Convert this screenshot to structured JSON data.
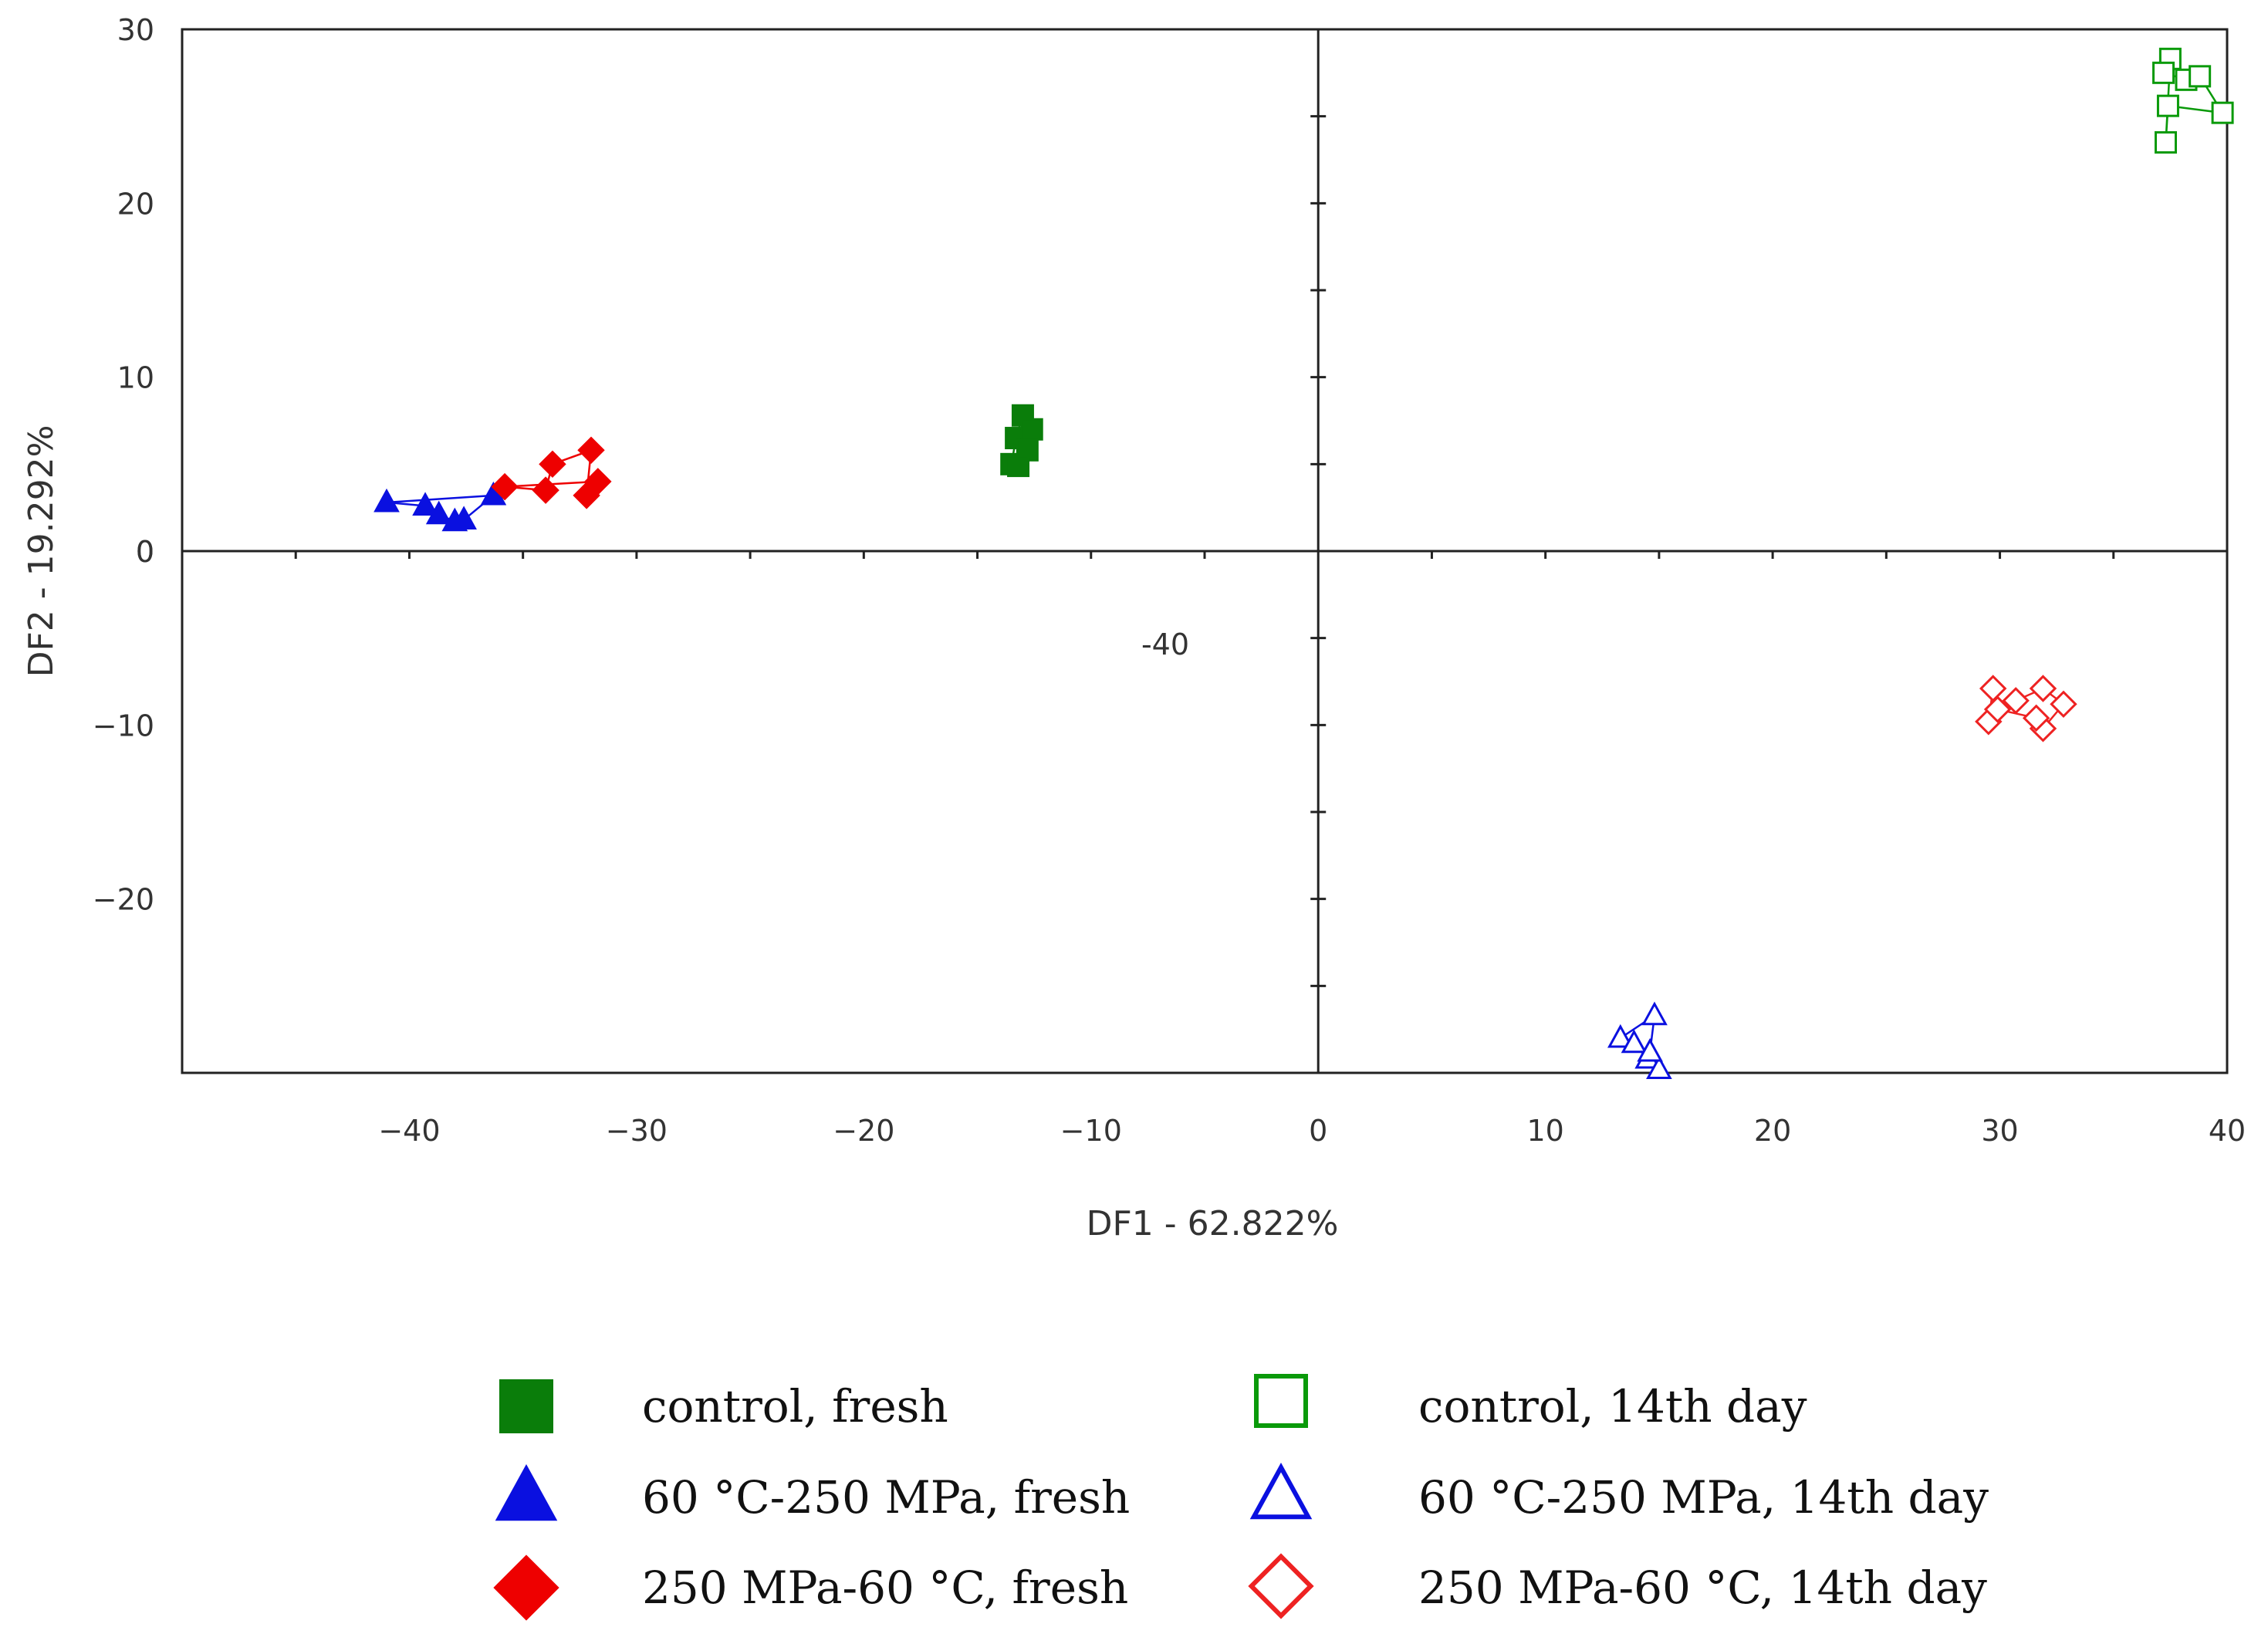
{
  "chart_data": {
    "type": "scatter",
    "title": "",
    "xlabel": "DF1 - 62.822%",
    "ylabel": "DF2 - 19.292%",
    "xlim": [
      -50,
      40
    ],
    "ylim": [
      -30,
      30
    ],
    "x_ticks": [
      -40,
      -30,
      -20,
      -10,
      0,
      10,
      20,
      30,
      40
    ],
    "y_ticks": [
      -20,
      -10,
      0,
      10,
      20,
      30
    ],
    "stray_label": "-40",
    "grid": false,
    "legend_position": "bottom",
    "series": [
      {
        "name": "control, fresh",
        "marker": "square",
        "filled": true,
        "color": "#0a7d0a",
        "points": [
          [
            -13.5,
            5.0
          ],
          [
            -13.3,
            6.5
          ],
          [
            -13.0,
            7.8
          ],
          [
            -12.6,
            7.0
          ],
          [
            -12.8,
            5.8
          ],
          [
            -13.2,
            4.9
          ]
        ]
      },
      {
        "name": "60 °C-250 MPa, fresh",
        "marker": "triangle",
        "filled": true,
        "color": "#0a10e0",
        "points": [
          [
            -41.0,
            2.8
          ],
          [
            -39.3,
            2.6
          ],
          [
            -38.7,
            2.1
          ],
          [
            -38.0,
            1.7
          ],
          [
            -37.6,
            1.8
          ],
          [
            -36.3,
            3.2
          ]
        ]
      },
      {
        "name": "250 MPa-60 °C, fresh",
        "marker": "diamond",
        "filled": true,
        "color": "#ee0000",
        "points": [
          [
            -35.8,
            3.7
          ],
          [
            -34.0,
            3.5
          ],
          [
            -33.7,
            5.0
          ],
          [
            -32.0,
            5.8
          ],
          [
            -32.2,
            3.2
          ],
          [
            -31.7,
            4.0
          ]
        ]
      },
      {
        "name": "control, 14th day",
        "marker": "square",
        "filled": false,
        "color": "#0a9a0a",
        "points": [
          [
            37.5,
            28.3
          ],
          [
            37.2,
            27.5
          ],
          [
            38.2,
            27.1
          ],
          [
            38.8,
            27.3
          ],
          [
            39.8,
            25.2
          ],
          [
            37.4,
            25.6
          ],
          [
            37.3,
            23.5
          ]
        ]
      },
      {
        "name": "60 °C-250 MPa, 14th day",
        "marker": "triangle",
        "filled": false,
        "color": "#0a10e0",
        "points": [
          [
            14.8,
            -26.7
          ],
          [
            13.3,
            -28.0
          ],
          [
            13.9,
            -28.3
          ],
          [
            14.5,
            -29.2
          ],
          [
            15.0,
            -29.8
          ],
          [
            14.6,
            -28.8
          ]
        ]
      },
      {
        "name": "250 MPa-60 °C, 14th day",
        "marker": "diamond",
        "filled": false,
        "color": "#ee2222",
        "points": [
          [
            29.7,
            -7.9
          ],
          [
            29.5,
            -9.8
          ],
          [
            30.7,
            -8.6
          ],
          [
            31.9,
            -7.9
          ],
          [
            32.8,
            -8.8
          ],
          [
            31.9,
            -10.2
          ],
          [
            31.6,
            -9.6
          ],
          [
            29.9,
            -9.1
          ]
        ]
      }
    ]
  }
}
